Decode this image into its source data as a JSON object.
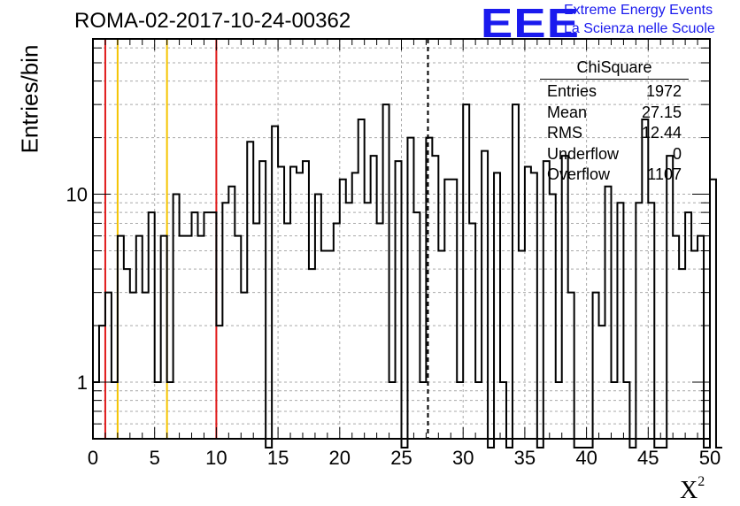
{
  "header": {
    "run_title": "ROMA-02-2017-10-24-00362",
    "logo_mark": "EEE",
    "logo_line1": "Extreme Energy Events",
    "logo_line2": "La Scienza nelle Scuole"
  },
  "stats_box": {
    "title": "ChiSquare",
    "rows": [
      {
        "label": "Entries",
        "value": "1972"
      },
      {
        "label": "Mean",
        "value": "27.15"
      },
      {
        "label": "RMS",
        "value": "12.44"
      },
      {
        "label": "Underflow",
        "value": "0"
      },
      {
        "label": "Overflow",
        "value": "1107"
      }
    ]
  },
  "colors": {
    "red_marker": "#e01818",
    "yellow_marker": "#f5c400",
    "histogram": "#000000",
    "grid": "#a9a9a9",
    "logo": "#1a1aee"
  },
  "chart_data": {
    "type": "histogram",
    "title": "ROMA-02-2017-10-24-00362",
    "xlabel": "X",
    "xlabel_superscript": "2",
    "ylabel": "Entries/bin",
    "xlim": [
      0,
      50
    ],
    "ylim": [
      0.5,
      67
    ],
    "yscale": "log",
    "grid": true,
    "x_ticks": [
      0,
      5,
      10,
      15,
      20,
      25,
      30,
      35,
      40,
      45,
      50
    ],
    "y_ticks": [
      1,
      10
    ],
    "bin_width": 0.5,
    "bin_start": 0,
    "values": [
      1,
      2,
      3,
      1,
      6,
      4,
      3,
      6,
      3,
      8,
      1,
      6,
      1,
      10,
      6,
      6,
      8,
      6,
      8,
      8,
      2,
      9,
      11,
      6,
      3,
      19,
      7,
      15,
      0,
      23,
      14,
      7,
      14,
      13,
      15,
      4,
      10,
      5,
      5,
      7,
      12,
      9,
      13,
      25,
      9,
      16,
      7,
      30,
      1,
      15,
      0,
      20,
      8,
      1,
      20,
      16,
      5,
      12,
      12,
      1,
      30,
      7,
      1,
      17,
      0,
      13,
      1,
      0,
      30,
      5,
      14,
      13,
      0,
      15,
      10,
      1,
      16,
      3,
      0,
      0,
      0,
      3,
      2,
      11,
      1,
      9,
      1,
      0,
      9,
      25,
      9,
      0,
      0,
      16,
      6,
      4,
      8,
      5,
      6,
      0,
      12,
      0
    ],
    "reference_lines": [
      {
        "x": 1,
        "color": "red",
        "style": "solid"
      },
      {
        "x": 2,
        "color": "yellow",
        "style": "solid"
      },
      {
        "x": 6,
        "color": "yellow",
        "style": "solid"
      },
      {
        "x": 10,
        "color": "red",
        "style": "solid"
      },
      {
        "x": 27.15,
        "color": "black",
        "style": "dashed"
      }
    ]
  }
}
